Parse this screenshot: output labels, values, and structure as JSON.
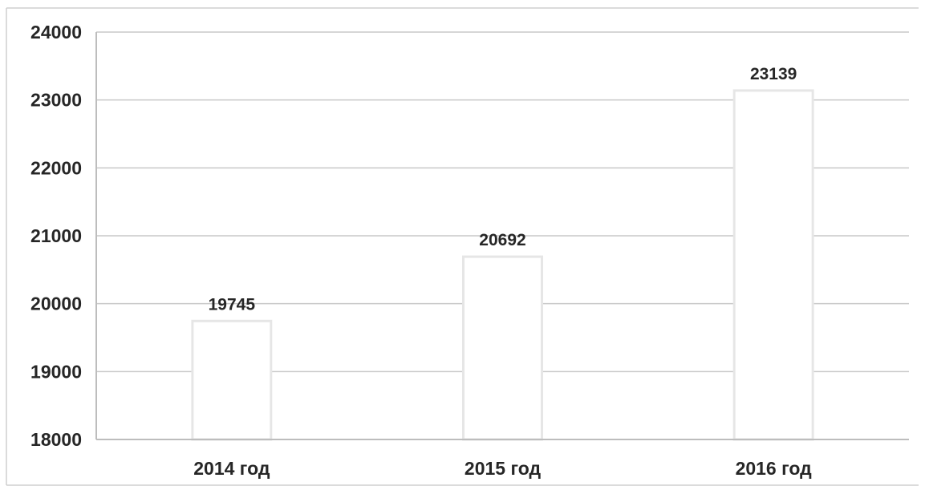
{
  "chart_data": {
    "type": "bar",
    "title": "",
    "xlabel": "",
    "ylabel": "",
    "categories": [
      "2014 год",
      "2015 год",
      "2016 год"
    ],
    "values": [
      19745,
      20692,
      23139
    ],
    "data_labels": [
      "19745",
      "20692",
      "23139"
    ],
    "ylim": [
      18000,
      24000
    ],
    "yticks": [
      18000,
      19000,
      20000,
      21000,
      22000,
      23000,
      24000
    ],
    "ytick_labels": [
      "18000",
      "19000",
      "20000",
      "21000",
      "22000",
      "23000",
      "24000"
    ],
    "grid": true,
    "legend": "none",
    "colors": {
      "bar_fill": "#ffffff",
      "bar_edge": "#e6e6e6",
      "grid": "#c8c8c8",
      "text": "#262626"
    }
  }
}
